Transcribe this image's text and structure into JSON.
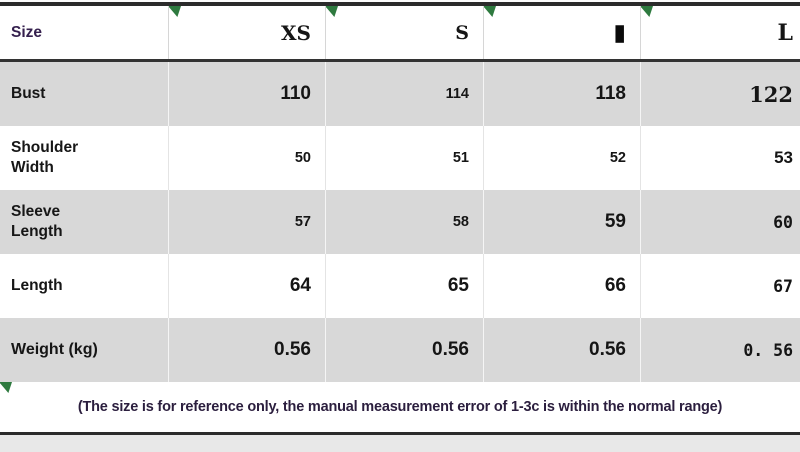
{
  "size_chart": {
    "header": {
      "label": "Size",
      "sizes": [
        "XS",
        "S",
        "▮",
        "L"
      ]
    },
    "rows": [
      {
        "label": "Bust",
        "values": [
          "110",
          "114",
          "118",
          "122"
        ]
      },
      {
        "label": "Shoulder\nWidth",
        "values": [
          "50",
          "51",
          "52",
          "53"
        ]
      },
      {
        "label": "Sleeve\nLength",
        "values": [
          "57",
          "58",
          "59",
          "60"
        ]
      },
      {
        "label": "Length",
        "values": [
          "64",
          "65",
          "66",
          "67"
        ]
      },
      {
        "label": "Weight (kg)",
        "values": [
          "0.56",
          "0.56",
          "0.56",
          "0. 56"
        ]
      }
    ],
    "footer_note": "(The size is for reference only, the manual measurement error of 1-3c is within the normal range)",
    "colors": {
      "accent_text": "#35204e",
      "alt_row_gray": "#d8d8d8",
      "marker_green": "#2e7a3f",
      "line_dark": "#2b2b2b"
    },
    "icons": {
      "corner_marker": "green-corner-triangle"
    }
  }
}
